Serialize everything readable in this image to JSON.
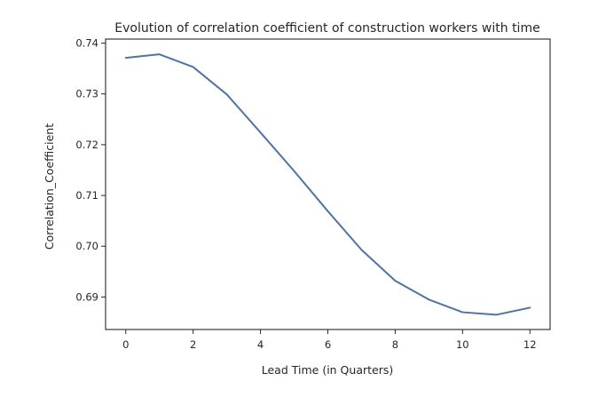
{
  "chart_data": {
    "type": "line",
    "title": "Evolution of correlation coefficient of construction workers with time",
    "xlabel": "Lead Time (in Quarters)",
    "ylabel": "Correlation_Coefficient",
    "xlim": [
      -0.6,
      12.6
    ],
    "ylim": [
      0.6836,
      0.7408
    ],
    "x_ticks": [
      0,
      2,
      4,
      6,
      8,
      10,
      12
    ],
    "x_tick_labels": [
      "0",
      "2",
      "4",
      "6",
      "8",
      "10",
      "12"
    ],
    "y_ticks": [
      0.69,
      0.7,
      0.71,
      0.72,
      0.73,
      0.74
    ],
    "y_tick_labels": [
      "0.69",
      "0.70",
      "0.71",
      "0.72",
      "0.73",
      "0.74"
    ],
    "grid": false,
    "legend": "none",
    "series": [
      {
        "color": "#4c72b0",
        "x": [
          0,
          1,
          2,
          3,
          4,
          5,
          6,
          7,
          8,
          9,
          10,
          11,
          12
        ],
        "y": [
          0.7371,
          0.7378,
          0.7353,
          0.7299,
          0.7224,
          0.7148,
          0.7069,
          0.6993,
          0.6932,
          0.6895,
          0.687,
          0.6865,
          0.6879
        ]
      }
    ]
  }
}
